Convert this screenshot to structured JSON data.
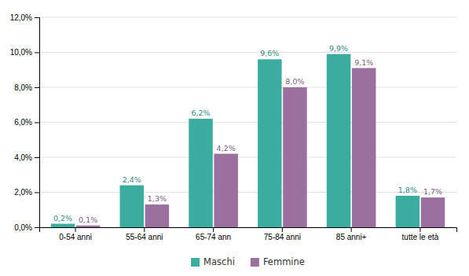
{
  "chart_data": {
    "type": "bar",
    "categories": [
      "0-54 anni",
      "55-64 anni",
      "65-74 ann",
      "75-84 anni",
      "85 anni+",
      "tutte le età"
    ],
    "series": [
      {
        "name": "Maschi",
        "color": "#3aada0",
        "values": [
          0.2,
          2.4,
          6.2,
          9.6,
          9.9,
          1.8
        ],
        "value_labels": [
          "0,2%",
          "2,4%",
          "6,2%",
          "9,6%",
          "9,9%",
          "1,8%"
        ]
      },
      {
        "name": "Femmine",
        "color": "#9b6fa0",
        "values": [
          0.1,
          1.3,
          4.2,
          8.0,
          9.1,
          1.7
        ],
        "value_labels": [
          "0,1%",
          "1,3%",
          "4,2%",
          "8,0%",
          "9,1%",
          "1,7%"
        ]
      }
    ],
    "ylim": [
      0,
      12
    ],
    "yticks": [
      {
        "value": 0,
        "label": "0,0%"
      },
      {
        "value": 2,
        "label": "2,0%"
      },
      {
        "value": 4,
        "label": "4,0%"
      },
      {
        "value": 6,
        "label": "6,0%"
      },
      {
        "value": 8,
        "label": "8,0%"
      },
      {
        "value": 10,
        "label": "10,0%"
      },
      {
        "value": 12,
        "label": "12,0%"
      }
    ],
    "grid": true,
    "data_labels": true,
    "legend": "bottom"
  }
}
